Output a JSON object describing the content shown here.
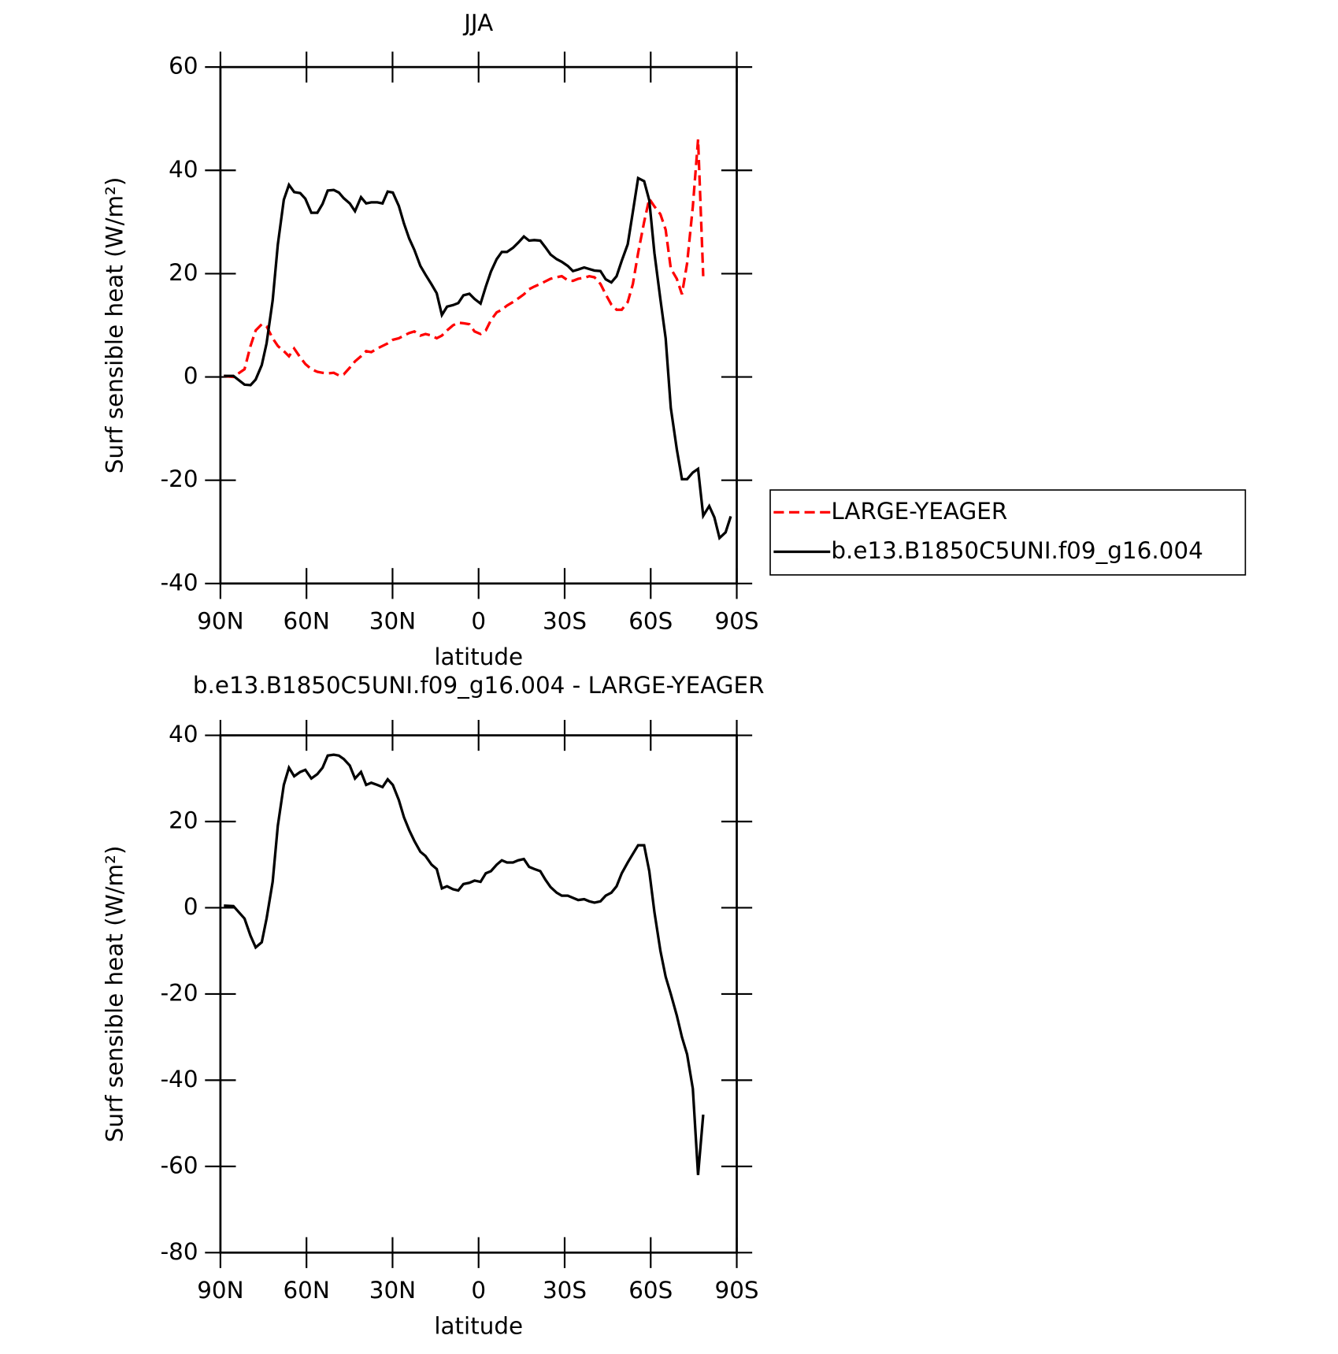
{
  "chart_data": [
    {
      "type": "line",
      "title": "JJA",
      "x_label": "latitude",
      "y_label": "Surf sensible heat (W/m²)",
      "xlim": [
        90,
        -90
      ],
      "ylim": [
        -40,
        60
      ],
      "xticks": [
        {
          "value": 90,
          "label": "90N"
        },
        {
          "value": 60,
          "label": "60N"
        },
        {
          "value": 30,
          "label": "30N"
        },
        0,
        {
          "value": -30,
          "label": "30S"
        },
        {
          "value": -60,
          "label": "60S"
        },
        {
          "value": -90,
          "label": "90S"
        }
      ],
      "yticks": [
        -40,
        -20,
        0,
        20,
        40,
        60
      ],
      "legend": "right",
      "x": [
        88.8,
        85.5,
        81.6,
        79.5,
        77.7,
        75.6,
        73.9,
        71.8,
        70.0,
        67.9,
        66.1,
        64.3,
        62.2,
        60.4,
        58.3,
        56.2,
        54.4,
        52.6,
        50.5,
        48.7,
        47.0,
        44.9,
        43.1,
        41.0,
        39.2,
        37.4,
        35.3,
        33.5,
        31.7,
        29.9,
        27.8,
        26.0,
        24.2,
        22.4,
        20.3,
        18.5,
        16.4,
        14.6,
        12.8,
        11.0,
        8.9,
        7.1,
        5.3,
        3.2,
        1.4,
        -0.7,
        -2.5,
        -4.3,
        -6.3,
        -8.1,
        -9.9,
        -12.0,
        -13.8,
        -15.8,
        -17.6,
        -19.4,
        -21.5,
        -23.3,
        -25.1,
        -27.2,
        -29.0,
        -31.1,
        -32.9,
        -34.7,
        -36.8,
        -38.6,
        -40.4,
        -42.5,
        -44.3,
        -46.3,
        -48.1,
        -49.9,
        -52.0,
        -53.8,
        -55.6,
        -57.7,
        -59.5,
        -61.3,
        -63.4,
        -65.2,
        -67.0,
        -69.1,
        -70.9,
        -72.7,
        -74.7,
        -76.5,
        -78.3,
        -80.4,
        -82.2,
        -84.0,
        -86.1,
        -87.9
      ],
      "series": [
        {
          "name": "LARGE-YEAGER",
          "color": "#ff0000",
          "line_style": "dashed",
          "values": [
            0.2,
            0,
            1.5,
            6,
            9,
            10.2,
            9.8,
            7.5,
            6,
            5,
            4,
            5.5,
            3.8,
            2.5,
            1.5,
            1,
            0.8,
            0.7,
            0.8,
            0.3,
            0.5,
            1.8,
            3,
            4,
            5,
            4.8,
            5.5,
            6,
            6.5,
            7.2,
            7.5,
            8,
            8.5,
            8.8,
            8,
            8.3,
            8,
            7.5,
            8,
            9,
            10,
            10.5,
            10.4,
            10.2,
            8.8,
            8.3,
            9,
            11,
            12.5,
            13,
            13.8,
            14.5,
            15.2,
            16,
            17,
            17.5,
            18,
            18.5,
            19,
            19.3,
            19.5,
            18.7,
            18.6,
            19,
            19.2,
            19.5,
            19.3,
            18,
            16,
            14,
            13,
            13,
            14.5,
            18,
            24,
            30,
            34.5,
            33,
            31.5,
            28.5,
            21,
            19,
            16,
            22,
            33,
            46,
            19.5,
            null,
            null,
            null,
            null,
            null
          ]
        },
        {
          "name": "b.e13.B1850C5UNI.f09_g16.004",
          "color": "#000000",
          "line_style": "solid",
          "values": [
            0.2,
            0.2,
            -1.5,
            -1.6,
            -0.5,
            2.3,
            6.5,
            14.8,
            25.6,
            34.3,
            37.2,
            35.8,
            35.6,
            34.5,
            31.8,
            31.8,
            33.5,
            36.1,
            36.2,
            35.7,
            34.6,
            33.6,
            32.1,
            34.8,
            33.6,
            33.8,
            33.8,
            33.6,
            35.9,
            35.7,
            33.1,
            29.7,
            26.8,
            24.6,
            21.5,
            19.8,
            17.9,
            16.2,
            12.0,
            13.6,
            13.9,
            14.3,
            15.8,
            16.1,
            15.1,
            14.2,
            17.5,
            20.4,
            22.8,
            24.2,
            24.2,
            25.0,
            26.0,
            27.2,
            26.4,
            26.5,
            26.4,
            25.1,
            23.7,
            22.8,
            22.3,
            21.5,
            20.5,
            20.8,
            21.2,
            20.9,
            20.6,
            20.5,
            18.9,
            18.3,
            19.5,
            22.5,
            25.7,
            32.0,
            38.5,
            37.9,
            34.2,
            24,
            15,
            7.5,
            -6,
            -14,
            -19.8,
            -19.8,
            -18.5,
            -17.8,
            -26.9,
            -25,
            -27.2,
            -31.2,
            -30.1,
            -27
          ]
        }
      ]
    },
    {
      "type": "line",
      "title": "b.e13.B1850C5UNI.f09_g16.004 - LARGE-YEAGER",
      "x_label": "latitude",
      "y_label": "Surf sensible heat (W/m²)",
      "xlim": [
        90,
        -90
      ],
      "ylim": [
        -80,
        40
      ],
      "xticks": [
        {
          "value": 90,
          "label": "90N"
        },
        {
          "value": 60,
          "label": "60N"
        },
        {
          "value": 30,
          "label": "30N"
        },
        0,
        {
          "value": -30,
          "label": "30S"
        },
        {
          "value": -60,
          "label": "60S"
        },
        {
          "value": -90,
          "label": "90S"
        }
      ],
      "yticks": [
        -80,
        -60,
        -40,
        -20,
        0,
        20,
        40
      ],
      "x": [
        88.8,
        85.5,
        81.6,
        79.5,
        77.7,
        75.6,
        73.9,
        71.8,
        70.0,
        67.9,
        66.1,
        64.3,
        62.2,
        60.4,
        58.3,
        56.2,
        54.4,
        52.6,
        50.5,
        48.7,
        47.0,
        44.9,
        43.1,
        41.0,
        39.2,
        37.4,
        35.3,
        33.5,
        31.7,
        29.9,
        27.8,
        26.0,
        24.2,
        22.4,
        20.3,
        18.5,
        16.4,
        14.6,
        12.8,
        11.0,
        8.9,
        7.1,
        5.3,
        3.2,
        1.4,
        -0.7,
        -2.5,
        -4.3,
        -6.3,
        -8.1,
        -9.9,
        -12.0,
        -13.8,
        -15.8,
        -17.6,
        -19.4,
        -21.5,
        -23.3,
        -25.1,
        -27.2,
        -29.0,
        -31.1,
        -32.9,
        -34.7,
        -36.8,
        -38.6,
        -40.4,
        -42.5,
        -44.3,
        -46.3,
        -48.1,
        -49.9,
        -52.0,
        -53.8,
        -55.6,
        -57.7,
        -59.5,
        -61.3,
        -63.4,
        -65.2,
        -67.0,
        -69.1,
        -70.9,
        -72.7,
        -74.7,
        -76.5,
        -78.3,
        -80.4,
        -82.2,
        -84.0,
        -86.1,
        -87.9
      ],
      "color": "#000000",
      "values": [
        0.5,
        0.4,
        -2.5,
        -6.5,
        -9.2,
        -8,
        -2.5,
        6,
        19,
        28.5,
        32.5,
        30.5,
        31.5,
        32,
        30,
        31,
        32.5,
        35.3,
        35.5,
        35.3,
        34.5,
        33,
        30,
        31.5,
        28.5,
        29,
        28.5,
        28,
        29.8,
        28.5,
        25,
        21,
        18,
        15.5,
        13,
        12,
        10,
        9,
        4.5,
        5,
        4.3,
        4,
        5.5,
        5.8,
        6.3,
        6,
        8,
        8.5,
        10,
        11,
        10.5,
        10.5,
        11,
        11.3,
        9.5,
        9,
        8.5,
        6.5,
        4.8,
        3.5,
        2.8,
        2.8,
        2.3,
        1.8,
        2,
        1.5,
        1.2,
        1.5,
        2.8,
        3.5,
        5,
        8,
        10.5,
        12.5,
        14.5,
        14.5,
        8.5,
        -1,
        -10,
        -16,
        -20,
        -25,
        -30,
        -34,
        -42,
        -62,
        -48,
        null,
        null,
        null,
        null,
        null
      ]
    }
  ]
}
